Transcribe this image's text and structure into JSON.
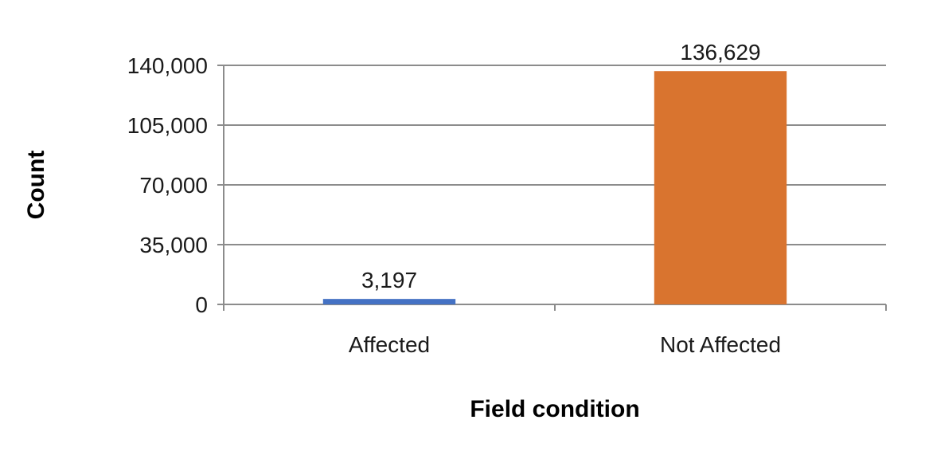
{
  "chart_data": {
    "type": "bar",
    "title": "",
    "xlabel": "Field condition",
    "ylabel": "Count",
    "categories": [
      "Affected",
      "Not Affected"
    ],
    "values": [
      3197,
      136629
    ],
    "value_labels": [
      "3,197",
      "136,629"
    ],
    "bar_colors": [
      "#4472C4",
      "#D9742F"
    ],
    "ylim": [
      0,
      140000
    ],
    "yticks": [
      0,
      35000,
      70000,
      105000,
      140000
    ],
    "ytick_labels": [
      "0",
      "35,000",
      "70,000",
      "105,000",
      "140,000"
    ],
    "grid": true,
    "legend": "none"
  }
}
